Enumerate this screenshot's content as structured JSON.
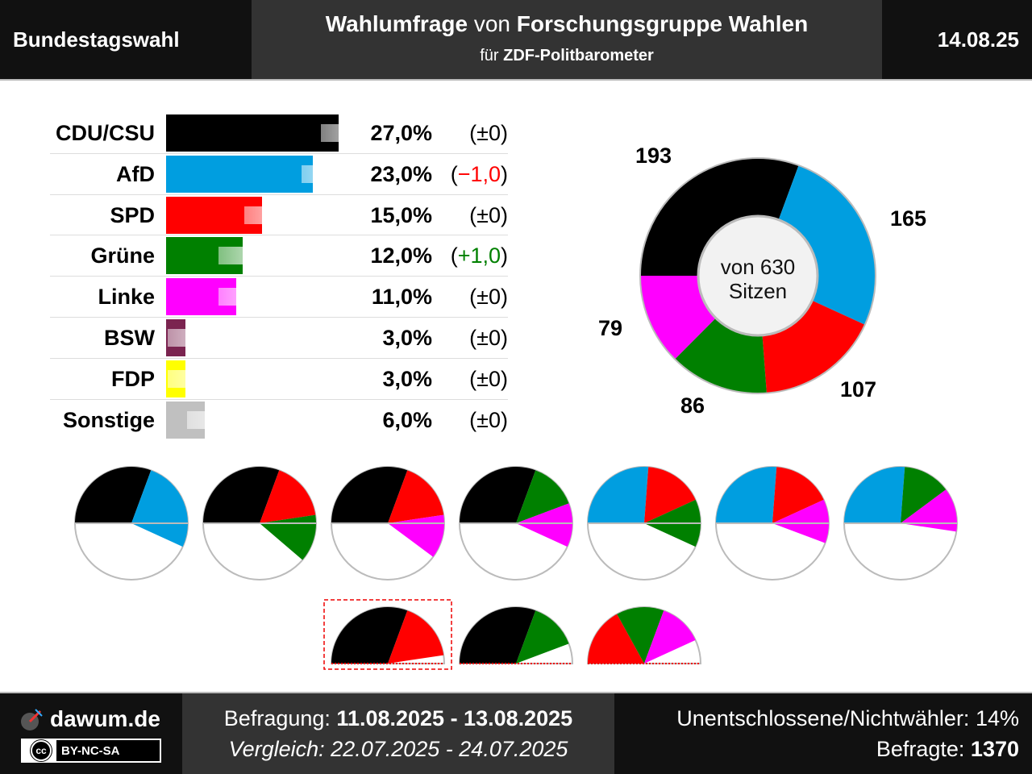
{
  "header": {
    "left": "Bundestagswahl",
    "title_prefix": "Wahlumfrage",
    "title_mid": "von",
    "institute": "Forschungsgruppe Wahlen",
    "sub_prefix": "für",
    "client": "ZDF-Politbarometer",
    "date": "14.08.25"
  },
  "chart_data": [
    {
      "type": "bar",
      "categories": [
        "CDU/CSU",
        "AfD",
        "SPD",
        "Grüne",
        "Linke",
        "BSW",
        "FDP",
        "Sonstige"
      ],
      "values": [
        27.0,
        23.0,
        15.0,
        12.0,
        11.0,
        3.0,
        3.0,
        6.0
      ],
      "previous_values": [
        27.0,
        24.0,
        15.0,
        11.0,
        11.0,
        3.0,
        3.0,
        6.0
      ],
      "value_labels": [
        "27,0%",
        "23,0%",
        "15,0%",
        "12,0%",
        "11,0%",
        "3,0%",
        "3,0%",
        "6,0%"
      ],
      "change_labels": [
        {
          "open": "(",
          "text": "±0",
          "close": ")",
          "color": "#000000"
        },
        {
          "open": "(",
          "text": "−1,0",
          "close": ")",
          "color": "#ff0000"
        },
        {
          "open": "(",
          "text": "±0",
          "close": ")",
          "color": "#000000"
        },
        {
          "open": "(",
          "text": "+1,0",
          "close": ")",
          "color": "#008000"
        },
        {
          "open": "(",
          "text": "±0",
          "close": ")",
          "color": "#000000"
        },
        {
          "open": "(",
          "text": "±0",
          "close": ")",
          "color": "#000000"
        },
        {
          "open": "(",
          "text": "±0",
          "close": ")",
          "color": "#000000"
        },
        {
          "open": "(",
          "text": "±0",
          "close": ")",
          "color": "#000000"
        }
      ],
      "colors": [
        "#000000",
        "#009ee0",
        "#ff0000",
        "#008000",
        "#ff00ff",
        "#7b2450",
        "#ffff00",
        "#c0c0c0"
      ],
      "xlim": [
        0,
        34
      ]
    },
    {
      "type": "pie",
      "subtype": "donut",
      "categories": [
        "CDU/CSU",
        "AfD",
        "SPD",
        "Grüne",
        "Linke"
      ],
      "values": [
        193,
        165,
        107,
        86,
        79
      ],
      "colors": [
        "#000000",
        "#009ee0",
        "#ff0000",
        "#008000",
        "#ff00ff"
      ],
      "center_line1": "von 630",
      "center_line2": "Sitzen"
    },
    {
      "type": "pie",
      "subtype": "coalition-half-circles",
      "coalitions": [
        {
          "parties": [
            "CDU/CSU",
            "AfD"
          ],
          "seats": [
            193,
            165
          ]
        },
        {
          "parties": [
            "CDU/CSU",
            "SPD",
            "Grüne"
          ],
          "seats": [
            193,
            107,
            86
          ]
        },
        {
          "parties": [
            "CDU/CSU",
            "SPD",
            "Linke"
          ],
          "seats": [
            193,
            107,
            79
          ]
        },
        {
          "parties": [
            "CDU/CSU",
            "Grüne",
            "Linke"
          ],
          "seats": [
            193,
            86,
            79
          ]
        },
        {
          "parties": [
            "AfD",
            "SPD",
            "Grüne"
          ],
          "seats": [
            165,
            107,
            86
          ]
        },
        {
          "parties": [
            "AfD",
            "SPD",
            "Linke"
          ],
          "seats": [
            165,
            107,
            79
          ]
        },
        {
          "parties": [
            "AfD",
            "Grüne",
            "Linke"
          ],
          "seats": [
            165,
            86,
            79
          ]
        },
        {
          "parties": [
            "CDU/CSU",
            "SPD"
          ],
          "seats": [
            193,
            107
          ],
          "highlight": true
        },
        {
          "parties": [
            "CDU/CSU",
            "Grüne"
          ],
          "seats": [
            193,
            86
          ]
        },
        {
          "parties": [
            "SPD",
            "Grüne",
            "Linke"
          ],
          "seats": [
            107,
            86,
            79
          ]
        }
      ],
      "total_seats": 630
    }
  ],
  "footer": {
    "site": "dawum.de",
    "license_cc": "cc",
    "license": "BY-NC-SA",
    "survey_label": "Befragung:",
    "survey_period": "11.08.2025 - 13.08.2025",
    "compare_label": "Vergleich:",
    "compare_period": "22.07.2025 - 24.07.2025",
    "undecided_label": "Unentschlossene/Nichtwähler:",
    "undecided_value": "14%",
    "respondents_label": "Befragte:",
    "respondents_value": "1370"
  }
}
